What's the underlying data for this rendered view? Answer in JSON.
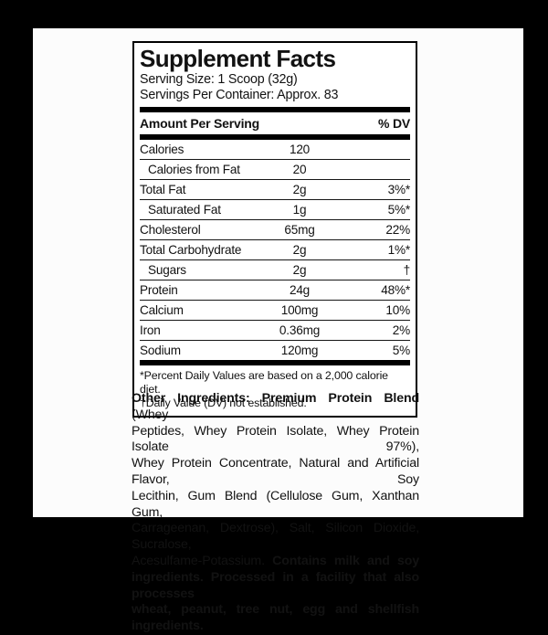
{
  "colors": {
    "page_background": "#000000",
    "label_background": "#ffffff",
    "text": "#121212",
    "rule": "#000000"
  },
  "facts": {
    "title": "Supplement Facts",
    "serving_size": "Serving Size: 1 Scoop (32g)",
    "servings_per_container": "Servings Per Container: Approx. 83",
    "header": {
      "amount_label": "Amount Per Serving",
      "dv_label": "% DV"
    },
    "rows": [
      {
        "label": "Calories",
        "amount": "120",
        "dv": "",
        "indent": false
      },
      {
        "label": "Calories from Fat",
        "amount": "20",
        "dv": "",
        "indent": true
      },
      {
        "label": "Total Fat",
        "amount": "2g",
        "dv": "3%*",
        "indent": false
      },
      {
        "label": "Saturated Fat",
        "amount": "1g",
        "dv": "5%*",
        "indent": true
      },
      {
        "label": "Cholesterol",
        "amount": "65mg",
        "dv": "22%",
        "indent": false
      },
      {
        "label": "Total Carbohydrate",
        "amount": "2g",
        "dv": "1%*",
        "indent": false
      },
      {
        "label": "Sugars",
        "amount": "2g",
        "dv": "†",
        "indent": true
      },
      {
        "label": "Protein",
        "amount": "24g",
        "dv": "48%*",
        "indent": false
      },
      {
        "label": "Calcium",
        "amount": "100mg",
        "dv": "10%",
        "indent": false
      },
      {
        "label": "Iron",
        "amount": "0.36mg",
        "dv": "2%",
        "indent": false
      },
      {
        "label": "Sodium",
        "amount": "120mg",
        "dv": "5%",
        "indent": false
      }
    ],
    "footnotes": [
      "*Percent Daily Values are based on a 2,000 calorie diet.",
      "†Daily Value (DV) not established."
    ]
  },
  "other_ingredients": {
    "lines": [
      {
        "justify": true,
        "segments": [
          {
            "bold": true,
            "text": "Other Ingredients: Premium Protein Blend"
          },
          {
            "bold": false,
            "text": " (Whey"
          }
        ]
      },
      {
        "justify": true,
        "segments": [
          {
            "bold": false,
            "text": "Peptides, Whey Protein Isolate, Whey Protein Isolate 97%),"
          }
        ]
      },
      {
        "justify": true,
        "segments": [
          {
            "bold": false,
            "text": "Whey Protein Concentrate, Natural and Artificial Flavor, Soy"
          }
        ]
      },
      {
        "justify": true,
        "segments": [
          {
            "bold": false,
            "text": "Lecithin, Gum Blend (Cellulose Gum, Xanthan Gum,"
          }
        ]
      },
      {
        "justify": true,
        "segments": [
          {
            "bold": false,
            "text": "Carrageenan, Dextrose), Salt, Silicon Dioxide, Sucralose,"
          }
        ]
      },
      {
        "justify": true,
        "segments": [
          {
            "bold": false,
            "text": "Acesulfame-Potassium. "
          },
          {
            "bold": true,
            "text": "Contains milk and soy"
          }
        ]
      },
      {
        "justify": true,
        "segments": [
          {
            "bold": true,
            "text": "ingredients. Processed in a facility that also processes"
          }
        ]
      },
      {
        "justify": false,
        "segments": [
          {
            "bold": true,
            "text": "wheat, peanut, tree nut, egg and shellfish ingredients."
          }
        ]
      }
    ]
  }
}
